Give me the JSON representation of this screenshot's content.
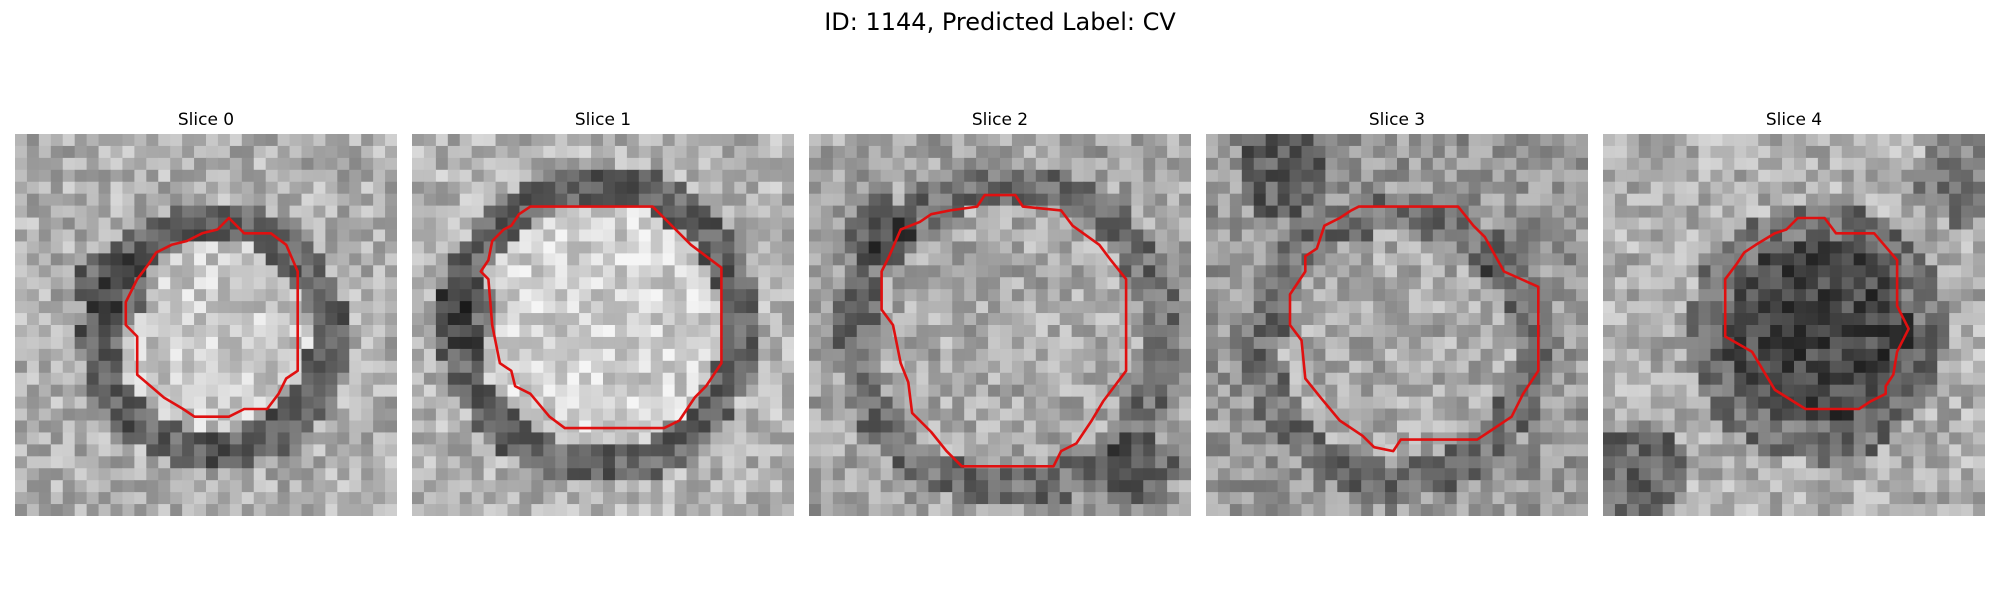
{
  "figure": {
    "title": "ID: 1144, Predicted Label: CV"
  },
  "slices": [
    {
      "title": "Slice 0",
      "contour_color": "#e01010"
    },
    {
      "title": "Slice 1",
      "contour_color": "#e01010"
    },
    {
      "title": "Slice 2",
      "contour_color": "#e01010"
    },
    {
      "title": "Slice 3",
      "contour_color": "#e01010"
    },
    {
      "title": "Slice 4",
      "contour_color": "#e01010"
    }
  ]
}
